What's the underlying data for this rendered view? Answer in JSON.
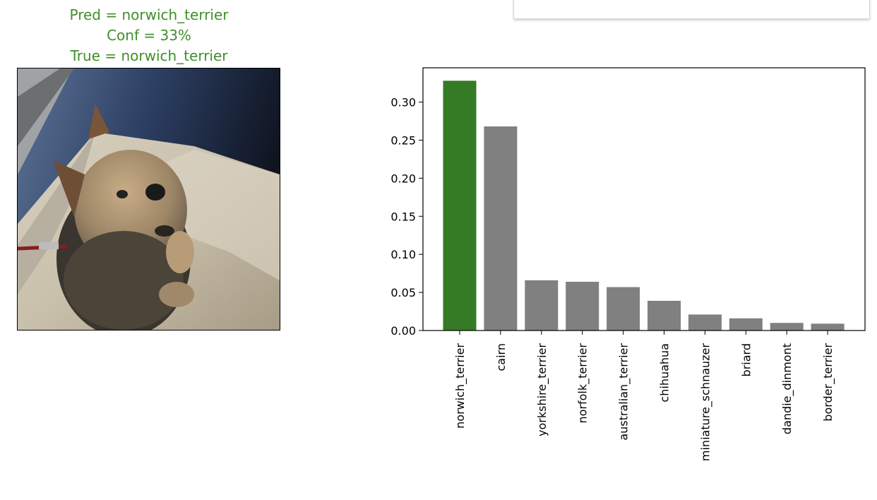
{
  "prediction": {
    "pred_line": "Pred = norwich_terrier",
    "conf_line": "Conf = 33%",
    "true_line": "True = norwich_terrier",
    "color": "#3f8f2a"
  },
  "image": {
    "subject": "dog-photo"
  },
  "colors": {
    "highlight_bar": "#357a24",
    "other_bar": "#808080"
  },
  "chart_data": {
    "type": "bar",
    "categories": [
      "norwich_terrier",
      "cairn",
      "yorkshire_terrier",
      "norfolk_terrier",
      "australian_terrier",
      "chihuahua",
      "miniature_schnauzer",
      "briard",
      "dandie_dinmont",
      "border_terrier"
    ],
    "values": [
      0.328,
      0.268,
      0.066,
      0.064,
      0.057,
      0.039,
      0.021,
      0.016,
      0.01,
      0.009
    ],
    "highlight_index": 0,
    "title": "",
    "xlabel": "",
    "ylabel": "",
    "ylim": [
      0,
      0.345
    ],
    "yticks": [
      0.0,
      0.05,
      0.1,
      0.15,
      0.2,
      0.25,
      0.3
    ],
    "ytick_labels": [
      "0.00",
      "0.05",
      "0.10",
      "0.15",
      "0.20",
      "0.25",
      "0.30"
    ],
    "grid": false,
    "legend": "none"
  }
}
